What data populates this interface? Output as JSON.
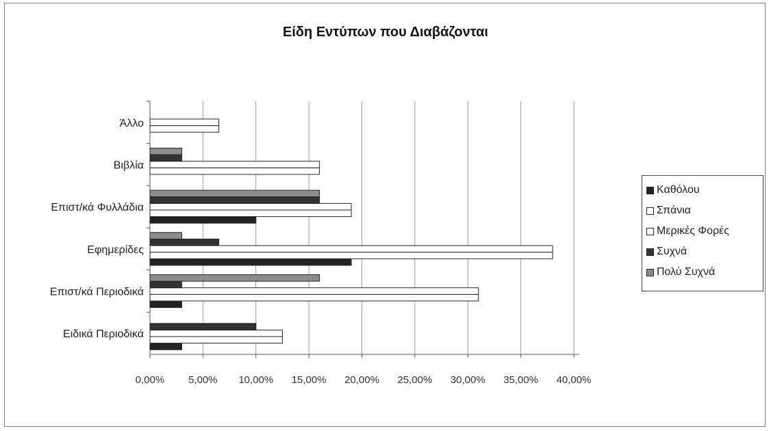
{
  "chart_data": {
    "type": "bar",
    "orientation": "horizontal",
    "title": "Είδη Εντύπων που Διαβάζονται",
    "categories": [
      "Ειδικά Περιοδικά",
      "Επιστ/κά Περιοδικά",
      "Εφημερίδες",
      "Επιστ/κά Φυλλάδια",
      "Βιβλία",
      "Άλλο"
    ],
    "series": [
      {
        "name": "Καθόλου",
        "color": "#222222",
        "values": [
          3,
          3,
          19,
          10,
          0,
          0
        ]
      },
      {
        "name": "Σπάνια",
        "color": "#ffffff",
        "values": [
          12.5,
          31,
          38,
          19,
          16,
          6.5
        ]
      },
      {
        "name": "Μερικές Φορές",
        "color": "#ffffff",
        "values": [
          12.5,
          31,
          38,
          19,
          16,
          6.5
        ]
      },
      {
        "name": "Συχνά",
        "color": "#333333",
        "values": [
          10,
          3,
          6.5,
          16,
          3,
          0
        ]
      },
      {
        "name": "Πολύ Συχνά",
        "color": "#8c8c8c",
        "values": [
          0,
          16,
          3,
          16,
          3,
          0
        ]
      }
    ],
    "x_ticks": [
      "0,00%",
      "5,00%",
      "10,00%",
      "15,00%",
      "20,00%",
      "25,00%",
      "30,00%",
      "35,00%",
      "40,00%"
    ],
    "xlim": [
      0,
      40
    ],
    "grid": true,
    "legend_position": "right"
  }
}
